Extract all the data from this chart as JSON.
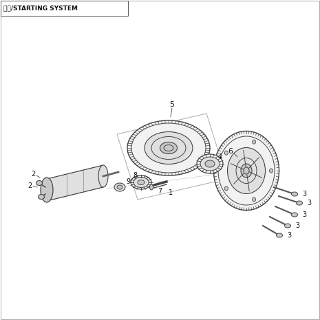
{
  "title": "系统/STARTING SYSTEM",
  "bg_color": "#ffffff",
  "lc": "#444444",
  "lc_light": "#888888",
  "fc_light": "#f2f2f2",
  "fc_mid": "#e0e0e0",
  "fc_dark": "#c8c8c8",
  "figsize": [
    4.65,
    4.65
  ],
  "dpi": 100
}
